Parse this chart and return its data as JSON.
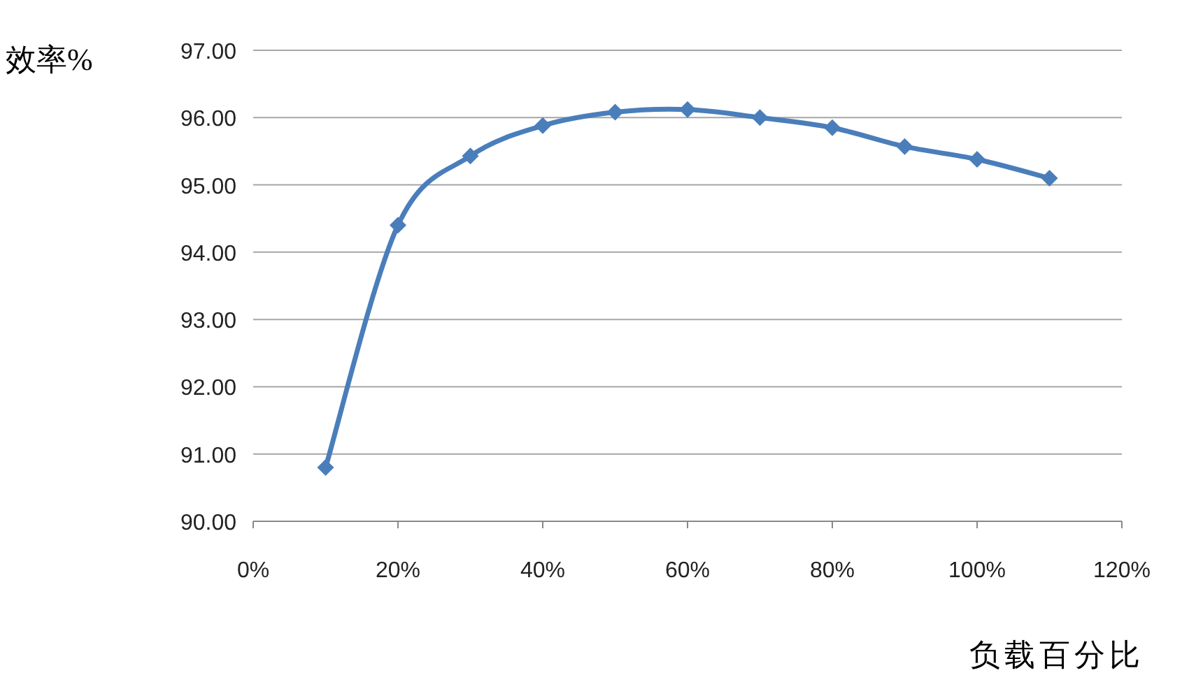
{
  "chart_data": {
    "type": "line",
    "ylabel": "效率%",
    "xlabel": "负载百分比",
    "x": [
      10,
      20,
      30,
      40,
      50,
      60,
      70,
      80,
      90,
      100,
      110
    ],
    "series": [
      {
        "color": "#4a7ebb",
        "values": [
          90.8,
          94.4,
          95.43,
          95.88,
          96.08,
          96.12,
          96.0,
          95.85,
          95.57,
          95.38,
          95.1
        ]
      }
    ],
    "xlim": [
      0,
      120
    ],
    "xticks": [
      {
        "value": 0,
        "label": "0%"
      },
      {
        "value": 20,
        "label": "20%"
      },
      {
        "value": 40,
        "label": "40%"
      },
      {
        "value": 60,
        "label": "60%"
      },
      {
        "value": 80,
        "label": "80%"
      },
      {
        "value": 100,
        "label": "100%"
      },
      {
        "value": 120,
        "label": "120%"
      }
    ],
    "ylim": [
      90,
      97
    ],
    "yticks": [
      {
        "value": 90,
        "label": "90.00"
      },
      {
        "value": 91,
        "label": "91.00"
      },
      {
        "value": 92,
        "label": "92.00"
      },
      {
        "value": 93,
        "label": "93.00"
      },
      {
        "value": 94,
        "label": "94.00"
      },
      {
        "value": 95,
        "label": "95.00"
      },
      {
        "value": 96,
        "label": "96.00"
      },
      {
        "value": 97,
        "label": "97.00"
      }
    ],
    "grid": "y",
    "marker": "diamond",
    "line_style": "solid"
  }
}
